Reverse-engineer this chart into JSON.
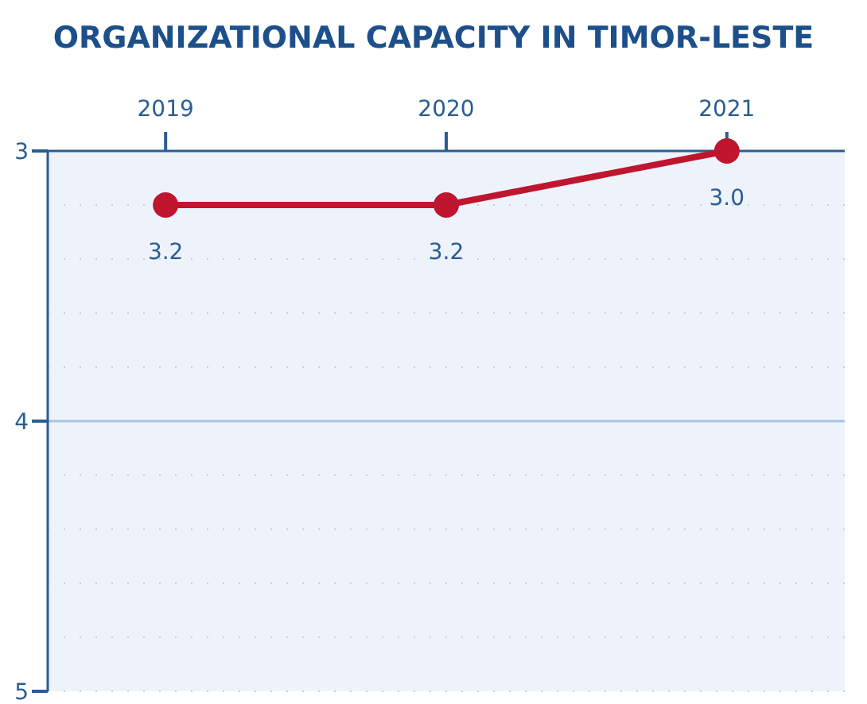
{
  "chart_data": {
    "type": "line",
    "title": "ORGANIZATIONAL CAPACITY IN TIMOR-LESTE",
    "categories": [
      "2019",
      "2020",
      "2021"
    ],
    "series": [
      {
        "color": "#c0152f",
        "values": [
          3.2,
          3.2,
          3.0
        ],
        "value_labels": [
          "3.2",
          "3.2",
          "3.0"
        ]
      }
    ],
    "ylim": [
      5,
      3
    ],
    "yticks": [
      3,
      4,
      5
    ],
    "grid": "y",
    "ref_lines": [
      {
        "axis": "y",
        "value": 4,
        "color": "#a9c3dc"
      }
    ],
    "marker": "circle",
    "line_style": "solid"
  }
}
